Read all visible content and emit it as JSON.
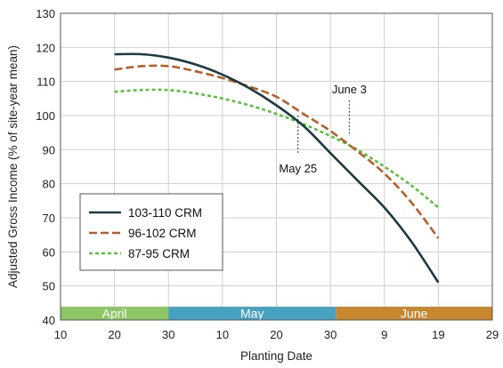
{
  "chart_data": {
    "type": "line",
    "title": "",
    "xlabel": "Planting Date",
    "ylabel": "Adjusted Gross Income (% of site-year mean)",
    "x_range": [
      0,
      80
    ],
    "ylim": [
      40,
      130
    ],
    "y_ticks": [
      40,
      50,
      60,
      70,
      80,
      90,
      100,
      110,
      120,
      130
    ],
    "x_ticks": [
      {
        "x": 0,
        "label": "10"
      },
      {
        "x": 10,
        "label": "20"
      },
      {
        "x": 20,
        "label": "30"
      },
      {
        "x": 30,
        "label": "10"
      },
      {
        "x": 40,
        "label": "20"
      },
      {
        "x": 50,
        "label": "30"
      },
      {
        "x": 60,
        "label": "9"
      },
      {
        "x": 70,
        "label": "19"
      },
      {
        "x": 80,
        "label": "29"
      }
    ],
    "month_bands": [
      {
        "label": "April",
        "x_start": 0,
        "x_end": 20,
        "color": "#8cc665"
      },
      {
        "label": "May",
        "x_start": 20,
        "x_end": 51,
        "color": "#47a1c0"
      },
      {
        "label": "June",
        "x_start": 51,
        "x_end": 80,
        "color": "#c8862f"
      }
    ],
    "grid": true,
    "legend_position": "lower-left",
    "series": [
      {
        "name": "103-110 CRM",
        "color": "#1c3a3f",
        "dash": "solid",
        "x": [
          10,
          15,
          20,
          25,
          30,
          35,
          40,
          45,
          50,
          55,
          60,
          65,
          70
        ],
        "y": [
          118,
          118,
          117,
          115,
          112,
          108,
          103,
          97,
          89,
          81,
          73,
          63,
          51
        ]
      },
      {
        "name": "96-102 CRM",
        "color": "#b5602c",
        "dash": "dashed",
        "x": [
          10,
          15,
          20,
          25,
          30,
          35,
          40,
          45,
          50,
          55,
          60,
          65,
          70
        ],
        "y": [
          113.5,
          114.5,
          114.5,
          113,
          111,
          108.5,
          105.5,
          100.5,
          95.5,
          89.5,
          83,
          74.5,
          64
        ]
      },
      {
        "name": "87-95 CRM",
        "color": "#5cbf3e",
        "dash": "dotted",
        "x": [
          10,
          15,
          20,
          25,
          30,
          35,
          40,
          45,
          50,
          55,
          60,
          65,
          70
        ],
        "y": [
          107,
          107.5,
          107.5,
          106.5,
          105,
          103,
          100.5,
          97.5,
          94,
          90,
          85,
          79.5,
          73
        ]
      }
    ],
    "annotations": [
      {
        "label": "May 25",
        "x": 44,
        "y": 100
      },
      {
        "label": "June 3",
        "x": 53.5,
        "y": 94
      }
    ]
  }
}
